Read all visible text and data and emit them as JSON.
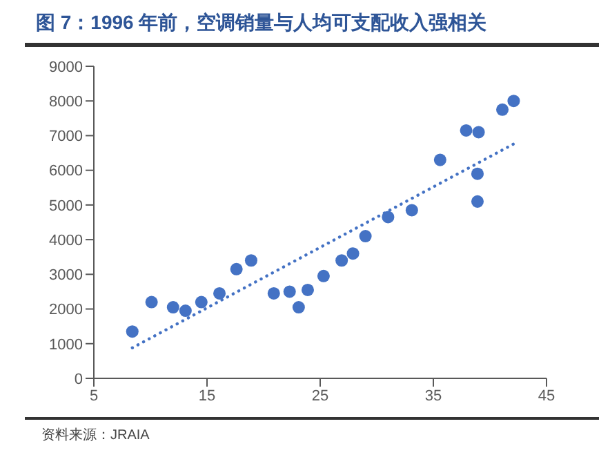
{
  "chart_data": {
    "type": "scatter",
    "title": "图 7：1996 年前，空调销量与人均可支配收入强相关",
    "annotations": [
      "资料来源：JRAIA"
    ],
    "series": [
      {
        "color": "#4472c4",
        "marker": "circle",
        "x": [
          8.4,
          10.1,
          12.0,
          13.1,
          14.5,
          16.1,
          17.6,
          18.9,
          20.9,
          22.3,
          23.1,
          23.9,
          25.3,
          26.9,
          27.9,
          29.0,
          31.0,
          33.1,
          35.6,
          37.9,
          39.0,
          38.9,
          38.9,
          41.1,
          42.1
        ],
        "values": [
          1350,
          2200,
          2050,
          1950,
          2200,
          2450,
          3150,
          3400,
          2450,
          2500,
          2050,
          2550,
          2950,
          3400,
          3600,
          4100,
          4650,
          4850,
          6300,
          7150,
          7100,
          5900,
          5100,
          7750,
          8000
        ]
      },
      {
        "type": "line",
        "color": "#4472c4",
        "line_style": "dotted",
        "marker": "none",
        "x": [
          8.4,
          42.1
        ],
        "values": [
          880,
          6760
        ]
      }
    ],
    "xlim": [
      5,
      45
    ],
    "xticks": [
      5,
      15,
      25,
      35,
      45
    ],
    "ylim": [
      0,
      9000
    ],
    "yticks": [
      0,
      1000,
      2000,
      3000,
      4000,
      5000,
      6000,
      7000,
      8000,
      9000
    ],
    "grid": false
  }
}
